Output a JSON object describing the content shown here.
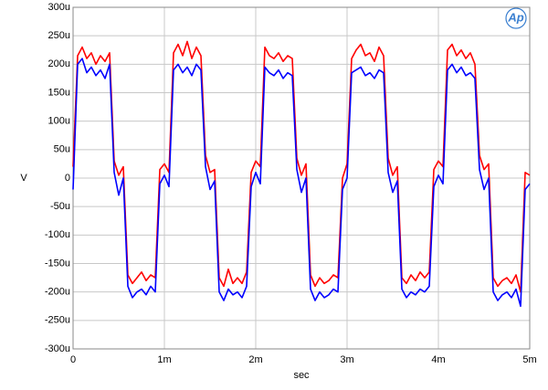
{
  "chart_data": {
    "type": "line",
    "xlabel": "sec",
    "ylabel": "V",
    "logo": "Ap",
    "x": [
      0,
      5e-05,
      0.0001,
      0.00015,
      0.0002,
      0.00025,
      0.0003,
      0.00035,
      0.0004,
      0.00045,
      0.0005,
      0.00055,
      0.0006,
      0.00065,
      0.0007,
      0.00075,
      0.0008,
      0.00085,
      0.0009,
      0.00095,
      0.001,
      0.00105,
      0.0011,
      0.00115,
      0.0012,
      0.00125,
      0.0013,
      0.00135,
      0.0014,
      0.00145,
      0.0015,
      0.00155,
      0.0016,
      0.00165,
      0.0017,
      0.00175,
      0.0018,
      0.00185,
      0.0019,
      0.00195,
      0.002,
      0.00205,
      0.0021,
      0.00215,
      0.0022,
      0.00225,
      0.0023,
      0.00235,
      0.0024,
      0.00245,
      0.0025,
      0.00255,
      0.0026,
      0.00265,
      0.0027,
      0.00275,
      0.0028,
      0.00285,
      0.0029,
      0.00295,
      0.003,
      0.00305,
      0.0031,
      0.00315,
      0.0032,
      0.00325,
      0.0033,
      0.00335,
      0.0034,
      0.00345,
      0.0035,
      0.00355,
      0.0036,
      0.00365,
      0.0037,
      0.00375,
      0.0038,
      0.00385,
      0.0039,
      0.00395,
      0.004,
      0.00405,
      0.0041,
      0.00415,
      0.0042,
      0.00425,
      0.0043,
      0.00435,
      0.0044,
      0.00445,
      0.0045,
      0.00455,
      0.0046,
      0.00465,
      0.0047,
      0.00475,
      0.0048,
      0.00485,
      0.0049,
      0.00495,
      0.005
    ],
    "series": [
      {
        "color": "#ff0000",
        "values": [
          2e-05,
          0.000215,
          0.00023,
          0.00021,
          0.00022,
          0.0002,
          0.000215,
          0.000205,
          0.00022,
          3e-05,
          5e-06,
          2e-05,
          -0.00017,
          -0.000185,
          -0.000175,
          -0.000165,
          -0.00018,
          -0.00017,
          -0.000175,
          1.5e-05,
          2.5e-05,
          1e-05,
          0.00022,
          0.000235,
          0.000215,
          0.00024,
          0.00021,
          0.00023,
          0.000215,
          4e-05,
          1e-05,
          1.5e-05,
          -0.000175,
          -0.00019,
          -0.00016,
          -0.000185,
          -0.000175,
          -0.000185,
          -0.000165,
          1e-05,
          3e-05,
          2e-05,
          0.00023,
          0.000215,
          0.00021,
          0.00022,
          0.000205,
          0.000215,
          0.00021,
          3.5e-05,
          5e-06,
          2.5e-05,
          -0.00017,
          -0.00019,
          -0.000175,
          -0.000185,
          -0.00018,
          -0.00017,
          -0.000175,
          0,
          2.5e-05,
          0.00021,
          0.000225,
          0.000235,
          0.000215,
          0.00022,
          0.000205,
          0.00023,
          0.000215,
          3.5e-05,
          5e-06,
          2e-05,
          -0.000175,
          -0.000185,
          -0.00017,
          -0.00018,
          -0.000165,
          -0.000175,
          -0.000165,
          1.5e-05,
          3e-05,
          2e-05,
          0.000225,
          0.000235,
          0.000215,
          0.000225,
          0.00021,
          0.00022,
          0.0002,
          4e-05,
          1.5e-05,
          2.5e-05,
          -0.000175,
          -0.00019,
          -0.00018,
          -0.000175,
          -0.000185,
          -0.00017,
          -0.0002,
          1e-05,
          5e-06
        ]
      },
      {
        "color": "#0000ff",
        "values": [
          -2e-05,
          0.0002,
          0.00021,
          0.000185,
          0.000195,
          0.00018,
          0.00019,
          0.000175,
          0.0002,
          1e-05,
          -3e-05,
          0,
          -0.00019,
          -0.00021,
          -0.0002,
          -0.000195,
          -0.000205,
          -0.00019,
          -0.0002,
          -1e-05,
          5e-06,
          -1.5e-05,
          0.00019,
          0.0002,
          0.000185,
          0.000195,
          0.00018,
          0.0002,
          0.00019,
          2e-05,
          -2e-05,
          -5e-06,
          -0.0002,
          -0.000215,
          -0.000195,
          -0.000205,
          -0.0002,
          -0.00021,
          -0.00019,
          -1.5e-05,
          1e-05,
          -1e-05,
          0.000195,
          0.000185,
          0.00018,
          0.00019,
          0.000175,
          0.000185,
          0.00018,
          1.5e-05,
          -2.5e-05,
          0,
          -0.000195,
          -0.000215,
          -0.0002,
          -0.00021,
          -0.000205,
          -0.000195,
          -0.0002,
          -2e-05,
          0,
          0.000185,
          0.00019,
          0.000195,
          0.00018,
          0.000185,
          0.000175,
          0.00019,
          0.000185,
          1e-05,
          -2.5e-05,
          -5e-06,
          -0.000195,
          -0.00021,
          -0.0002,
          -0.000205,
          -0.000195,
          -0.0002,
          -0.00019,
          -1.5e-05,
          5e-06,
          -1e-05,
          0.00019,
          0.0002,
          0.000185,
          0.000195,
          0.00018,
          0.000185,
          0.000175,
          1.5e-05,
          -2e-05,
          0,
          -0.0002,
          -0.000215,
          -0.000205,
          -0.0002,
          -0.00021,
          -0.000195,
          -0.000225,
          -2e-05,
          -1e-05
        ]
      }
    ],
    "xlim": [
      0,
      0.005
    ],
    "xticks": [
      0,
      {
        "value": 0.001,
        "label": "1m"
      },
      {
        "value": 0.002,
        "label": "2m"
      },
      {
        "value": 0.003,
        "label": "3m"
      },
      {
        "value": 0.004,
        "label": "4m"
      },
      {
        "value": 0.005,
        "label": "5m"
      }
    ],
    "ylim": [
      -0.0003,
      0.0003
    ],
    "yticks": [
      {
        "value": -0.0003,
        "label": "-300u"
      },
      {
        "value": -0.00025,
        "label": "-250u"
      },
      {
        "value": -0.0002,
        "label": "-200u"
      },
      {
        "value": -0.00015,
        "label": "-150u"
      },
      {
        "value": -0.0001,
        "label": "-100u"
      },
      {
        "value": -5e-05,
        "label": "-50u"
      },
      0,
      {
        "value": 5e-05,
        "label": "50u"
      },
      {
        "value": 0.0001,
        "label": "100u"
      },
      {
        "value": 0.00015,
        "label": "150u"
      },
      {
        "value": 0.0002,
        "label": "200u"
      },
      {
        "value": 0.00025,
        "label": "250u"
      },
      {
        "value": 0.0003,
        "label": "300u"
      }
    ],
    "grid": true
  }
}
